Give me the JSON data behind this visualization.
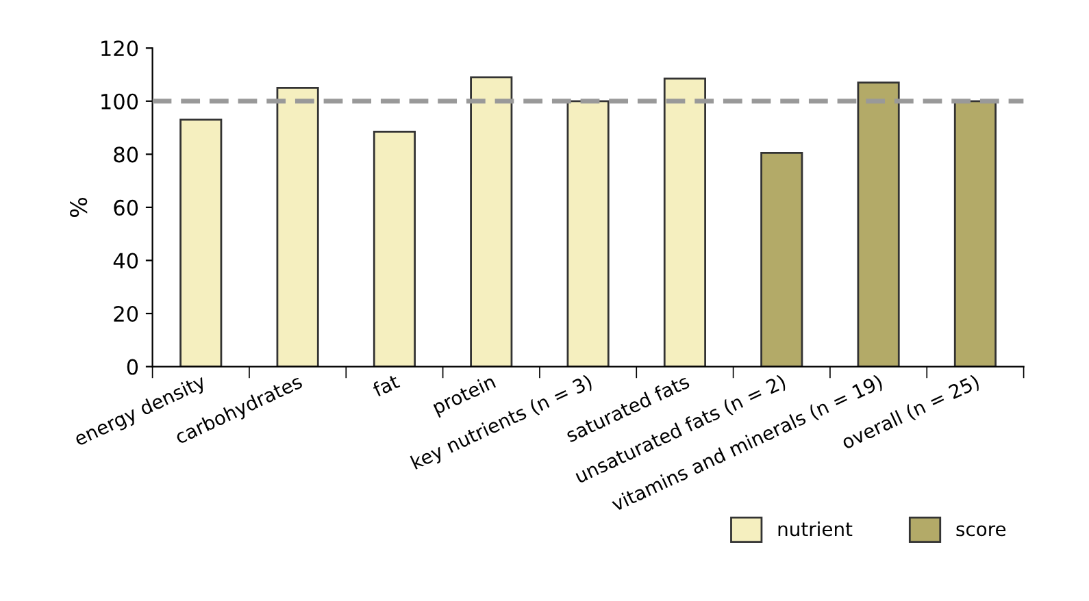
{
  "chart_data": {
    "type": "bar",
    "ylabel": "%",
    "categories": [
      "energy density",
      "carbohydrates",
      "fat",
      "protein",
      "key nutrients (n = 3)",
      "saturated fats",
      "unsaturated fats (n = 2)",
      "vitamins and minerals (n = 19)",
      "overall (n = 25)"
    ],
    "series": [
      {
        "name": "nutrient",
        "color": "#f5efbf",
        "values": [
          93,
          105,
          88.5,
          109,
          100,
          108.5,
          null,
          null,
          null
        ]
      },
      {
        "name": "score",
        "color": "#b3aa68",
        "values": [
          null,
          null,
          null,
          null,
          null,
          null,
          80.5,
          107,
          100
        ]
      }
    ],
    "ylim": [
      0,
      120
    ],
    "yticks": [
      0,
      20,
      40,
      60,
      80,
      100,
      120
    ],
    "ref_lines": [
      {
        "axis": "y",
        "value": 100,
        "color": "#999999",
        "line_style": "dashed"
      }
    ],
    "grid": false,
    "legend": "bottom right"
  }
}
